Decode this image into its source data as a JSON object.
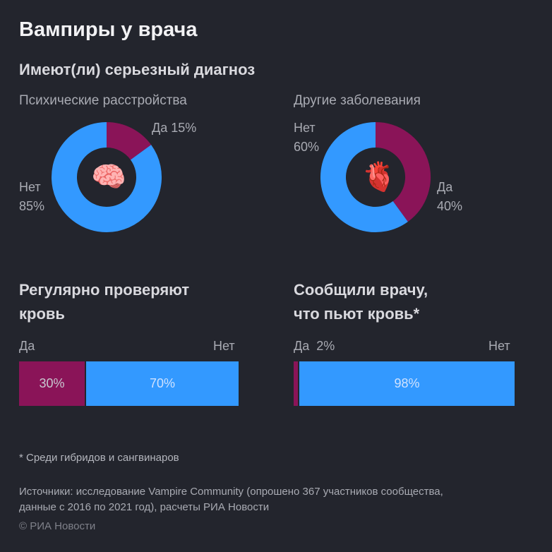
{
  "title": "Вампиры у врача",
  "subtitle": "Имеют(ли) серьезный диагноз",
  "colors": {
    "yes": "#8a1458",
    "no": "#3399ff",
    "background": "#23252d"
  },
  "donut_left": {
    "title": "Психические расстройства",
    "icon": "brain-icon",
    "icon_glyph": "🧠",
    "yes_label": "Да 15%",
    "no_label_line1": "Нет",
    "no_label_line2": "85%"
  },
  "donut_right": {
    "title": "Другие заболевания",
    "icon": "heart-icon",
    "icon_glyph": "🫀",
    "yes_label_line1": "Да",
    "yes_label_line2": "40%",
    "no_label_line1": "Нет",
    "no_label_line2": "60%"
  },
  "bar_left": {
    "title_line1": "Регулярно проверяют",
    "title_line2": "кровь",
    "yes_end": "Да",
    "no_end": "Нет",
    "yes_text": "30%",
    "no_text": "70%"
  },
  "bar_right": {
    "title_line1": "Сообщили врачу,",
    "title_line2": "что пьют кровь*",
    "yes_end": "Да",
    "yes_pct_text": "2%",
    "no_end": "Нет",
    "no_text": "98%"
  },
  "footnote": "* Среди гибридов и сангвинаров",
  "source_line1": "Источники: исследование Vampire Community (опрошено 367 участников сообщества,",
  "source_line2": "данные с 2016 по 2021 год), расчеты РИА Новости",
  "copyright": "© РИА Новости",
  "chart_data": [
    {
      "type": "pie",
      "title": "Психические расстройства",
      "categories": [
        "Да",
        "Нет"
      ],
      "values": [
        15,
        85
      ]
    },
    {
      "type": "pie",
      "title": "Другие заболевания",
      "categories": [
        "Да",
        "Нет"
      ],
      "values": [
        40,
        60
      ]
    },
    {
      "type": "bar",
      "title": "Регулярно проверяют кровь",
      "categories": [
        "Да",
        "Нет"
      ],
      "values": [
        30,
        70
      ]
    },
    {
      "type": "bar",
      "title": "Сообщили врачу, что пьют кровь*",
      "categories": [
        "Да",
        "Нет"
      ],
      "values": [
        2,
        98
      ]
    }
  ]
}
